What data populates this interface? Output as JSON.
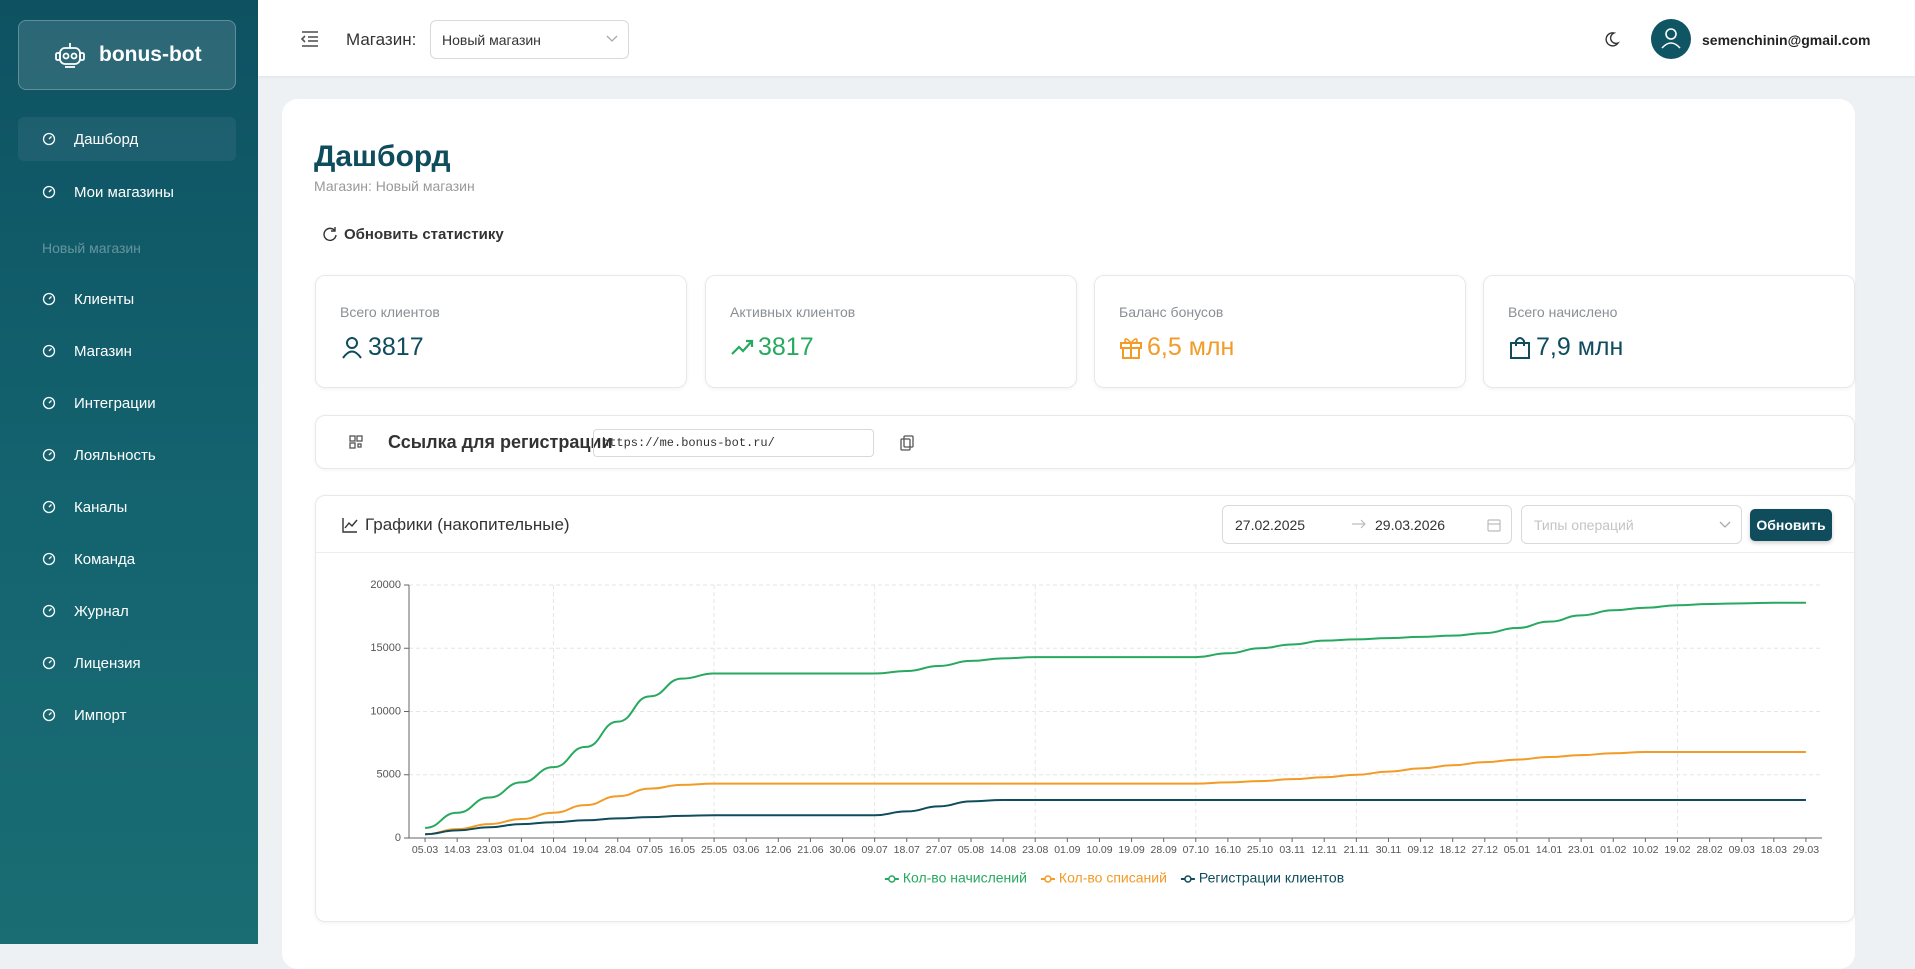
{
  "sidebar": {
    "logo": "bonus-bot",
    "menu": [
      "Дашборд",
      "Мои магазины"
    ],
    "section": "Новый магазин",
    "store_menu": [
      "Клиенты",
      "Магазин",
      "Интеграции",
      "Лояльность",
      "Каналы",
      "Команда",
      "Журнал",
      "Лицензия",
      "Импорт"
    ]
  },
  "header": {
    "store_label": "Магазин:",
    "store_value": "Новый магазин",
    "email": "semenchinin@gmail.com"
  },
  "page": {
    "title": "Дашборд",
    "subtitle": "Магазин: Новый магазин",
    "refresh": "Обновить статистику",
    "stats": [
      {
        "label": "Всего клиентов",
        "value": "3817"
      },
      {
        "label": "Активных клиентов",
        "value": "3817"
      },
      {
        "label": "Баланс бонусов",
        "value": "6,5 млн"
      },
      {
        "label": "Всего начислено",
        "value": "7,9 млн"
      }
    ],
    "link_label": "Ссылка для регистрации",
    "link_value": "https://me.bonus-bot.ru/",
    "chart_title": "Графики (накопительные)",
    "date_from": "27.02.2025",
    "date_to": "29.03.2026",
    "op_placeholder": "Типы операций",
    "update_button": "Обновить"
  },
  "chart_data": {
    "type": "line",
    "categories": [
      "05.03",
      "14.03",
      "23.03",
      "01.04",
      "10.04",
      "19.04",
      "28.04",
      "07.05",
      "16.05",
      "25.05",
      "03.06",
      "12.06",
      "21.06",
      "30.06",
      "09.07",
      "18.07",
      "27.07",
      "05.08",
      "14.08",
      "23.08",
      "01.09",
      "10.09",
      "19.09",
      "28.09",
      "07.10",
      "16.10",
      "25.10",
      "03.11",
      "12.11",
      "21.11",
      "30.11",
      "09.12",
      "18.12",
      "27.12",
      "05.01",
      "14.01",
      "23.01",
      "01.02",
      "10.02",
      "19.02",
      "28.02",
      "09.03",
      "18.03",
      "29.03"
    ],
    "series": [
      {
        "name": "Кол-во начислений",
        "color": "#27a95f",
        "values": [
          800,
          2000,
          3200,
          4400,
          5600,
          7200,
          9200,
          11200,
          12600,
          13000,
          13000,
          13000,
          13000,
          13000,
          13000,
          13200,
          13600,
          14000,
          14200,
          14300,
          14300,
          14300,
          14300,
          14300,
          14300,
          14600,
          15000,
          15300,
          15600,
          15700,
          15800,
          15900,
          16000,
          16200,
          16600,
          17100,
          17600,
          18000,
          18200,
          18400,
          18500,
          18550,
          18600,
          18600
        ]
      },
      {
        "name": "Кол-во списаний",
        "color": "#f29b26",
        "values": [
          300,
          700,
          1100,
          1500,
          2000,
          2600,
          3300,
          3900,
          4200,
          4300,
          4300,
          4300,
          4300,
          4300,
          4300,
          4300,
          4300,
          4300,
          4300,
          4300,
          4300,
          4300,
          4300,
          4300,
          4300,
          4400,
          4500,
          4650,
          4800,
          5000,
          5250,
          5500,
          5750,
          6000,
          6200,
          6400,
          6550,
          6700,
          6800,
          6800,
          6800,
          6800,
          6800,
          6800
        ]
      },
      {
        "name": "Регистрации клиентов",
        "color": "#0f4c5c",
        "values": [
          300,
          600,
          850,
          1100,
          1250,
          1400,
          1550,
          1650,
          1750,
          1800,
          1800,
          1800,
          1800,
          1800,
          1800,
          2100,
          2500,
          2900,
          3000,
          3000,
          3000,
          3000,
          3000,
          3000,
          3000,
          3000,
          3000,
          3000,
          3000,
          3000,
          3000,
          3000,
          3000,
          3000,
          3000,
          3000,
          3000,
          3000,
          3000,
          3000,
          3000,
          3000,
          3000,
          3000
        ]
      }
    ],
    "ylim": [
      0,
      20000
    ],
    "yticks": [
      0,
      5000,
      10000,
      15000,
      20000
    ],
    "grid": true
  }
}
